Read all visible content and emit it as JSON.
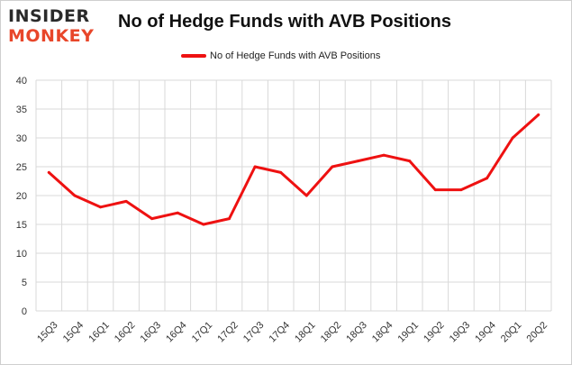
{
  "logo": {
    "line1": "INSIDER",
    "line2": "MONKEY"
  },
  "chart_data": {
    "type": "line",
    "title": "No of Hedge Funds with AVB Positions",
    "categories": [
      "15Q3",
      "15Q4",
      "16Q1",
      "16Q2",
      "16Q3",
      "16Q4",
      "17Q1",
      "17Q2",
      "17Q3",
      "17Q4",
      "18Q1",
      "18Q2",
      "18Q3",
      "18Q4",
      "19Q1",
      "19Q2",
      "19Q3",
      "19Q4",
      "20Q1",
      "20Q2"
    ],
    "series": [
      {
        "name": "No of Hedge Funds with AVB Positions",
        "values": [
          24,
          20,
          18,
          19,
          16,
          17,
          15,
          16,
          25,
          24,
          20,
          25,
          26,
          27,
          26,
          21,
          21,
          23,
          30,
          34
        ]
      }
    ],
    "yticks": [
      "0",
      "5",
      "10",
      "15",
      "20",
      "25",
      "30",
      "35",
      "40"
    ],
    "ylim": [
      0,
      40
    ],
    "grid": true,
    "legend_position": "top",
    "line_color": "#ee1111"
  }
}
